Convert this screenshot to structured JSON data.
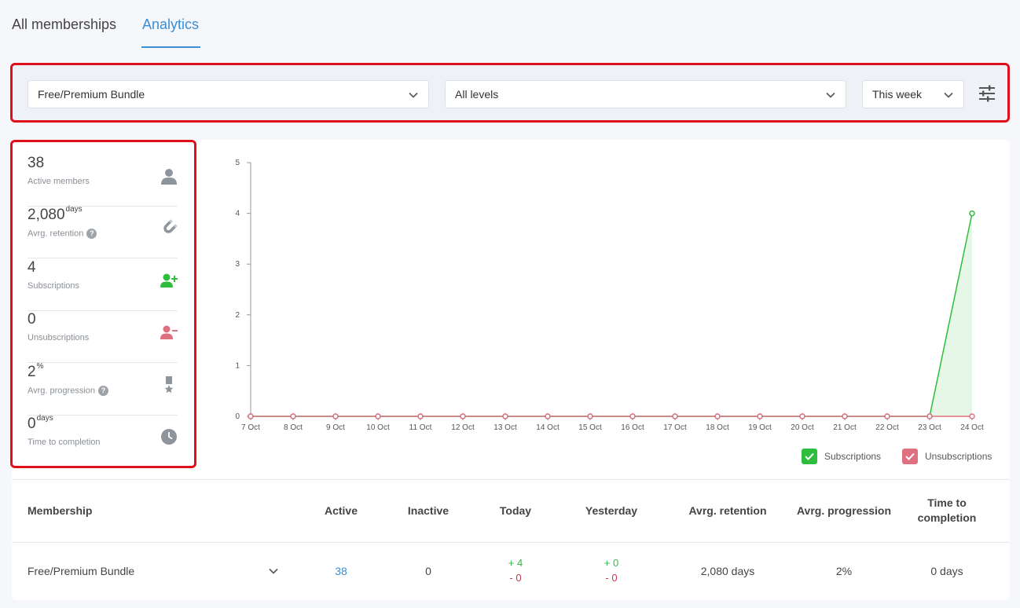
{
  "tabs": [
    {
      "label": "All memberships"
    },
    {
      "label": "Analytics"
    }
  ],
  "filters": {
    "membership": "Free/Premium Bundle",
    "levels": "All levels",
    "period": "This week"
  },
  "stats": [
    {
      "value": "38",
      "unit": "",
      "label": "Active members",
      "icon": "user-icon",
      "help": false
    },
    {
      "value": "2,080",
      "unit": "days",
      "label": "Avrg. retention",
      "icon": "magnet-icon",
      "help": true
    },
    {
      "value": "4",
      "unit": "",
      "label": "Subscriptions",
      "icon": "user-plus-icon",
      "help": false
    },
    {
      "value": "0",
      "unit": "",
      "label": "Unsubscriptions",
      "icon": "user-minus-icon",
      "help": false
    },
    {
      "value": "2",
      "unit": "%",
      "label": "Avrg. progression",
      "icon": "medal-icon",
      "help": true
    },
    {
      "value": "0",
      "unit": "days",
      "label": "Time to completion",
      "icon": "clock-icon",
      "help": false
    }
  ],
  "help_glyph": "?",
  "colors": {
    "accent": "#3a8ed6",
    "subscriptions": "#2ebd3d",
    "unsubscriptions": "#e07080",
    "highlight": "#e0101a"
  },
  "chart_data": {
    "type": "line",
    "x": [
      "7 Oct",
      "8 Oct",
      "9 Oct",
      "10 Oct",
      "11 Oct",
      "12 Oct",
      "13 Oct",
      "14 Oct",
      "15 Oct",
      "16 Oct",
      "17 Oct",
      "18 Oct",
      "19 Oct",
      "20 Oct",
      "21 Oct",
      "22 Oct",
      "23 Oct",
      "24 Oct"
    ],
    "series": [
      {
        "name": "Subscriptions",
        "values": [
          0,
          0,
          0,
          0,
          0,
          0,
          0,
          0,
          0,
          0,
          0,
          0,
          0,
          0,
          0,
          0,
          0,
          4
        ],
        "color": "#2ebd3d",
        "fill": true
      },
      {
        "name": "Unsubscriptions",
        "values": [
          0,
          0,
          0,
          0,
          0,
          0,
          0,
          0,
          0,
          0,
          0,
          0,
          0,
          0,
          0,
          0,
          0,
          0
        ],
        "color": "#e07080",
        "fill": false
      }
    ],
    "yticks": [
      0,
      1,
      2,
      3,
      4,
      5
    ],
    "ylim": [
      0,
      5
    ],
    "grid": false,
    "legend": "bottom-right"
  },
  "legend": {
    "subscriptions": "Subscriptions",
    "unsubscriptions": "Unsubscriptions"
  },
  "table": {
    "headers": {
      "membership": "Membership",
      "active": "Active",
      "inactive": "Inactive",
      "today": "Today",
      "yesterday": "Yesterday",
      "retention": "Avrg. retention",
      "progression": "Avrg. progression",
      "completion_line1": "Time to",
      "completion_line2": "completion"
    },
    "rows": [
      {
        "membership": "Free/Premium Bundle",
        "active": "38",
        "inactive": "0",
        "today_up": "+ 4",
        "today_down": "- 0",
        "yesterday_up": "+ 0",
        "yesterday_down": "- 0",
        "retention": "2,080 days",
        "progression": "2%",
        "completion": "0 days"
      }
    ]
  }
}
